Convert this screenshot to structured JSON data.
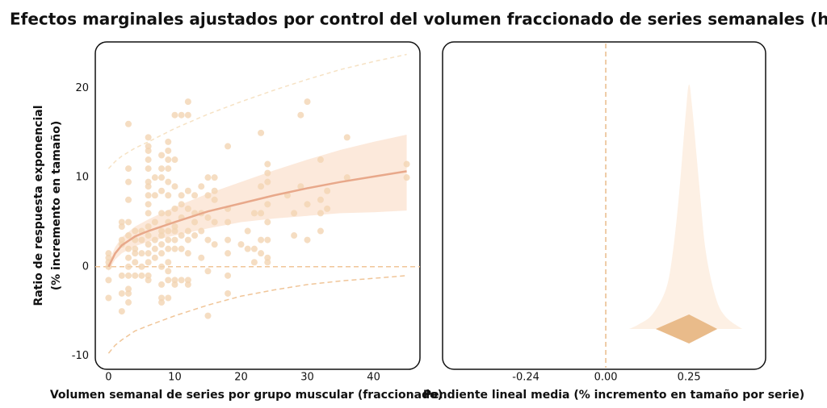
{
  "title": "Efectos marginales ajustados por control del volumen fraccionado de series semanales (hipertrofia)",
  "chart_data": [
    {
      "type": "scatter",
      "xlabel": "Volumen semanal de series por grupo muscular (fraccionado)",
      "ylabel": [
        "Ratio de respuesta exponencial",
        "(% incremento en tamaño)"
      ],
      "xlim": [
        -2,
        47
      ],
      "xticks": [
        0,
        10,
        20,
        30,
        40
      ],
      "ylim": [
        -11.5,
        25.2
      ],
      "yticks": [
        -10,
        0,
        10,
        20
      ],
      "reference_line": 0,
      "point_color": "#f3d5b3",
      "points": [
        {
          "x": 0,
          "values": [
            1.5,
            1,
            0,
            -1.5,
            -3.5,
            0.5
          ]
        },
        {
          "x": 2,
          "values": [
            5,
            4.5,
            3,
            2.5,
            -1,
            -3,
            -5
          ]
        },
        {
          "x": 3,
          "values": [
            16,
            11,
            9.5,
            7.5,
            5,
            3.5,
            2,
            1,
            0,
            -1,
            -2.5,
            -3,
            -4
          ]
        },
        {
          "x": 4,
          "values": [
            3,
            4,
            2,
            1.5,
            0.5,
            -1
          ]
        },
        {
          "x": 5,
          "values": [
            4,
            3,
            1.5,
            0,
            -1
          ]
        },
        {
          "x": 6,
          "values": [
            14.5,
            13.5,
            13,
            12,
            11,
            9.5,
            9,
            8,
            7,
            6,
            4.5,
            3.5,
            2.5,
            1.5,
            0.5,
            -1,
            -1.5
          ]
        },
        {
          "x": 7,
          "values": [
            10,
            8,
            5,
            3,
            2,
            1
          ]
        },
        {
          "x": 8,
          "values": [
            12.5,
            11,
            10,
            8.5,
            6,
            4,
            3.5,
            2.5,
            1.5,
            0,
            -2,
            -3.5,
            -4
          ]
        },
        {
          "x": 9,
          "values": [
            14,
            13,
            12,
            11,
            9.5,
            8,
            6,
            5,
            4,
            3,
            2,
            0.5,
            -0.5,
            -1.5,
            -3.5
          ]
        },
        {
          "x": 10,
          "values": [
            17,
            12,
            9,
            6.5,
            4.5,
            4,
            3,
            2,
            -1.5,
            -2
          ]
        },
        {
          "x": 11,
          "values": [
            17,
            8,
            7,
            5.5,
            3.5,
            2,
            -1.5
          ]
        },
        {
          "x": 12,
          "values": [
            18.5,
            17,
            8.5,
            6.5,
            4,
            3,
            1.5,
            -1.5,
            -2
          ]
        },
        {
          "x": 13,
          "values": [
            8,
            6,
            5,
            3.5
          ]
        },
        {
          "x": 14,
          "values": [
            9,
            6,
            4,
            1
          ]
        },
        {
          "x": 15,
          "values": [
            10,
            8,
            5.5,
            3,
            -0.5,
            -5.5
          ]
        },
        {
          "x": 16,
          "values": [
            10,
            8.5,
            7.5,
            5,
            2.5
          ]
        },
        {
          "x": 18,
          "values": [
            13.5,
            6.5,
            5,
            3,
            1.5,
            -1,
            -3
          ]
        },
        {
          "x": 20,
          "values": [
            2.5
          ]
        },
        {
          "x": 21,
          "values": [
            4,
            2
          ]
        },
        {
          "x": 22,
          "values": [
            6,
            2,
            0.5
          ]
        },
        {
          "x": 23,
          "values": [
            15,
            9,
            6,
            3,
            1.5
          ]
        },
        {
          "x": 24,
          "values": [
            11.5,
            10.5,
            9.5,
            7,
            5,
            3,
            1,
            0.5
          ]
        },
        {
          "x": 27,
          "values": [
            8
          ]
        },
        {
          "x": 28,
          "values": [
            6,
            3.5
          ]
        },
        {
          "x": 29,
          "values": [
            17,
            9
          ]
        },
        {
          "x": 30,
          "values": [
            18.5,
            7,
            3
          ]
        },
        {
          "x": 32,
          "values": [
            12,
            7.5,
            6,
            4
          ]
        },
        {
          "x": 33,
          "values": [
            8.5,
            6.5
          ]
        },
        {
          "x": 36,
          "values": [
            14.5,
            10
          ]
        },
        {
          "x": 45,
          "values": [
            11.5,
            10
          ]
        }
      ],
      "fit": {
        "x": [
          0,
          1,
          2,
          4,
          6,
          10,
          15,
          20,
          25,
          30,
          35,
          40,
          45
        ],
        "values": [
          0,
          1.5,
          2.4,
          3.4,
          4.0,
          5.0,
          6.2,
          7.1,
          8.0,
          8.8,
          9.5,
          10.1,
          10.7
        ],
        "lower": [
          -0.5,
          0.8,
          1.5,
          2.3,
          2.8,
          3.5,
          4.3,
          5.0,
          5.4,
          5.7,
          6.0,
          6.1,
          6.3
        ],
        "upper": [
          0.5,
          2.2,
          3.3,
          4.5,
          5.3,
          6.7,
          8.2,
          9.5,
          10.8,
          12.0,
          13.1,
          14.0,
          14.8
        ],
        "color": "#e8a88a",
        "band_color": "#fbe5d5"
      },
      "prediction": {
        "lower": [
          -9.7,
          -8.8,
          -8.2,
          -7.2,
          -6.6,
          -5.5,
          -4.3,
          -3.3,
          -2.6,
          -2.0,
          -1.6,
          -1.3,
          -1.0
        ],
        "upper": [
          11,
          11.8,
          12.4,
          13.3,
          14.0,
          15.5,
          17.1,
          18.5,
          19.8,
          21.0,
          22.1,
          23.0,
          23.8
        ],
        "lower_color": "#f0c598",
        "upper_color": "#f6e2c4"
      }
    },
    {
      "type": "density",
      "xlabel": "Pendiente lineal media (% incremento en tamaño por serie)",
      "xlim": [
        -0.49,
        0.48
      ],
      "xticks": [
        -0.24,
        {
          "value": 0,
          "label": "0.00"
        },
        0.25
      ],
      "reference_line": 0,
      "ylim": [
        0,
        1
      ],
      "x": [
        0.07,
        0.1,
        0.14,
        0.18,
        0.2,
        0.22,
        0.24,
        0.25,
        0.26,
        0.28,
        0.3,
        0.33,
        0.36,
        0.41
      ],
      "values": [
        0,
        0.02,
        0.06,
        0.16,
        0.3,
        0.55,
        0.88,
        1,
        0.9,
        0.6,
        0.32,
        0.13,
        0.05,
        0
      ],
      "color": "#fdf0e4",
      "interval": {
        "low": 0.15,
        "mean": 0.25,
        "high": 0.335,
        "color": "#e9bb8a"
      }
    }
  ]
}
